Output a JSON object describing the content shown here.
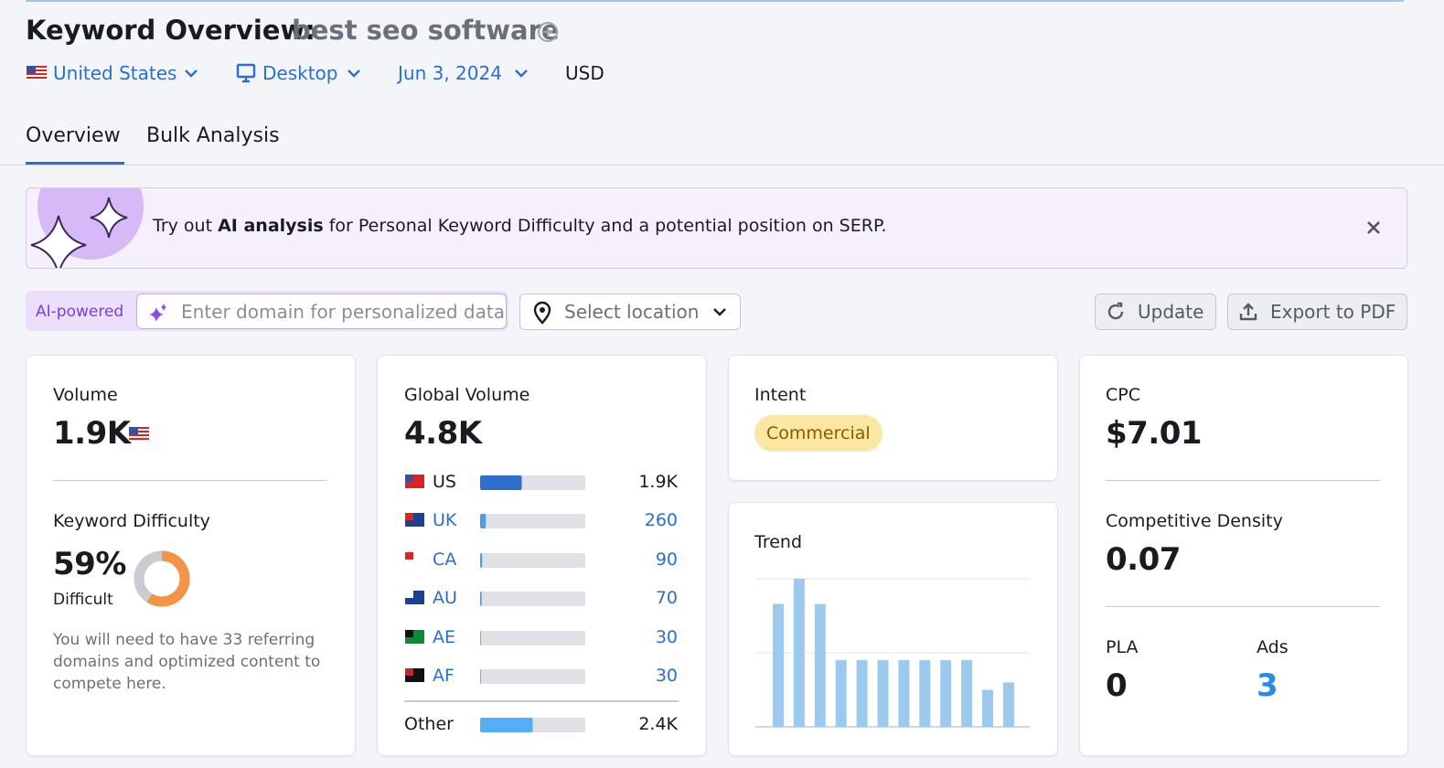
{
  "header": {
    "title": "Keyword Overview:",
    "keyword": "best seo software",
    "filters": {
      "country": "United States",
      "device": "Desktop",
      "date": "Jun 3, 2024",
      "currency": "USD"
    }
  },
  "tabs": [
    "Overview",
    "Bulk Analysis"
  ],
  "banner": {
    "prefix": "Try out",
    "highlight": "AI analysis",
    "suffix": "for Personal Keyword Difficulty and a potential position on SERP."
  },
  "toolbar": {
    "ai_label": "AI-powered",
    "domain_placeholder": "Enter domain for personalized data",
    "location_placeholder": "Select location",
    "update": "Update",
    "export": "Export to PDF"
  },
  "volume": {
    "label": "Volume",
    "value": "1.9K"
  },
  "difficulty": {
    "label": "Keyword Difficulty",
    "value": 59,
    "value_label": "59%",
    "level": "Difficult",
    "note": "You will need to have 33 referring domains and optimized content to compete here."
  },
  "global_volume": {
    "label": "Global Volume",
    "value": 4800,
    "value_label": "4.8K",
    "countries": [
      {
        "code": "US",
        "value": 1900,
        "value_label": "1.9K"
      },
      {
        "code": "UK",
        "value": 260
      },
      {
        "code": "CA",
        "value": 90
      },
      {
        "code": "AU",
        "value": 70
      },
      {
        "code": "AE",
        "value": 30
      },
      {
        "code": "AF",
        "value": 30
      }
    ],
    "other": {
      "label": "Other",
      "value": 2400,
      "value_label": "2.4K"
    }
  },
  "intent": {
    "label": "Intent",
    "value": "Commercial"
  },
  "trend": {
    "title": "Trend",
    "values": [
      83,
      100,
      83,
      45,
      45,
      45,
      45,
      45,
      45,
      45,
      25,
      30
    ],
    "ylim": [
      0,
      100
    ],
    "yticks": [
      0,
      50,
      100
    ]
  },
  "cpc": {
    "label": "CPC",
    "value": "$7.01"
  },
  "competitive_density": {
    "label": "Competitive Density",
    "value": "0.07"
  },
  "pla": {
    "label": "PLA",
    "value": "0"
  },
  "ads": {
    "label": "Ads",
    "value": "3"
  }
}
